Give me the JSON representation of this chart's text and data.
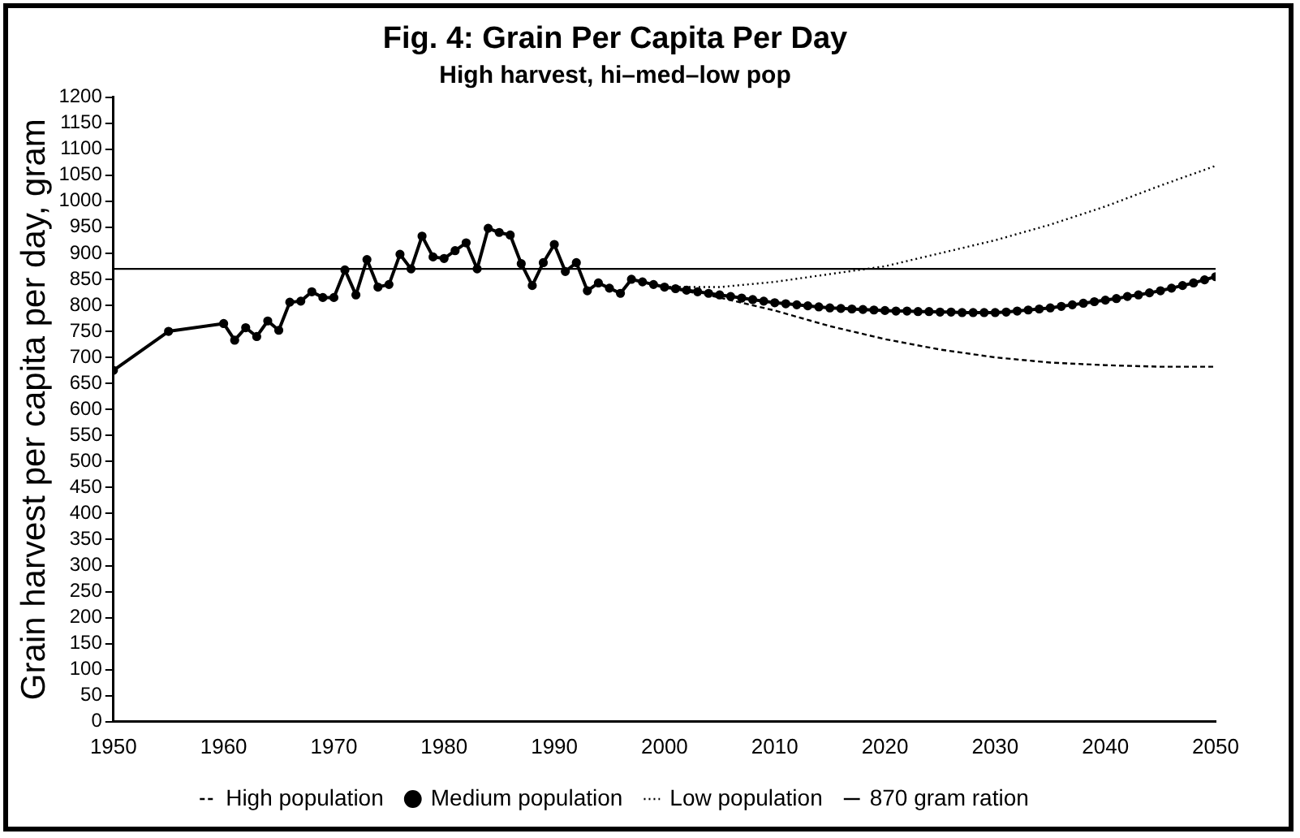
{
  "chart_data": {
    "type": "line",
    "title": "Fig. 4: Grain Per Capita Per Day",
    "subtitle": "High harvest, hi–med–low pop",
    "ylabel": "Grain harvest per capita per day, gram",
    "xlim": [
      1950,
      2050
    ],
    "xticks": [
      1950,
      1960,
      1970,
      1980,
      1990,
      2000,
      2010,
      2020,
      2030,
      2040,
      2050
    ],
    "ylim": [
      0,
      1200
    ],
    "yticks": [
      0,
      50,
      100,
      150,
      200,
      250,
      300,
      350,
      400,
      450,
      500,
      550,
      600,
      650,
      700,
      750,
      800,
      850,
      900,
      950,
      1000,
      1050,
      1100,
      1150,
      1200
    ],
    "grid": false,
    "legend": "bottom",
    "series": [
      {
        "name": "High population",
        "color": "#000000",
        "line_style": "dashed",
        "marker": "none",
        "x": [
          2000,
          2005,
          2010,
          2015,
          2020,
          2025,
          2030,
          2035,
          2040,
          2045,
          2050
        ],
        "values": [
          835,
          815,
          790,
          760,
          735,
          715,
          700,
          690,
          685,
          682,
          682
        ]
      },
      {
        "name": "Medium population",
        "color": "#000000",
        "line_style": "solid",
        "marker": "circle",
        "x": [
          1950,
          1955,
          1960,
          1961,
          1962,
          1963,
          1964,
          1965,
          1966,
          1967,
          1968,
          1969,
          1970,
          1971,
          1972,
          1973,
          1974,
          1975,
          1976,
          1977,
          1978,
          1979,
          1980,
          1981,
          1982,
          1983,
          1984,
          1985,
          1986,
          1987,
          1988,
          1989,
          1990,
          1991,
          1992,
          1993,
          1994,
          1995,
          1996,
          1997,
          1998,
          1999,
          2000,
          2001,
          2002,
          2003,
          2004,
          2005,
          2006,
          2007,
          2008,
          2009,
          2010,
          2011,
          2012,
          2013,
          2014,
          2015,
          2016,
          2017,
          2018,
          2019,
          2020,
          2021,
          2022,
          2023,
          2024,
          2025,
          2026,
          2027,
          2028,
          2029,
          2030,
          2031,
          2032,
          2033,
          2034,
          2035,
          2036,
          2037,
          2038,
          2039,
          2040,
          2041,
          2042,
          2043,
          2044,
          2045,
          2046,
          2047,
          2048,
          2049,
          2050
        ],
        "values": [
          675,
          750,
          765,
          733,
          757,
          740,
          770,
          752,
          806,
          808,
          826,
          815,
          815,
          868,
          820,
          888,
          835,
          840,
          898,
          870,
          933,
          893,
          890,
          905,
          920,
          870,
          948,
          940,
          935,
          880,
          838,
          882,
          917,
          865,
          882,
          828,
          843,
          833,
          823,
          850,
          845,
          840,
          835,
          832,
          829,
          826,
          823,
          820,
          817,
          814,
          811,
          808,
          805,
          803,
          801,
          799,
          797,
          795,
          794,
          793,
          792,
          791,
          790,
          789,
          789,
          788,
          788,
          787,
          787,
          786,
          786,
          786,
          786,
          787,
          789,
          791,
          793,
          795,
          798,
          801,
          804,
          807,
          810,
          813,
          817,
          820,
          824,
          828,
          833,
          838,
          843,
          849,
          855
        ]
      },
      {
        "name": "Low population",
        "color": "#000000",
        "line_style": "dotted",
        "marker": "none",
        "x": [
          2000,
          2005,
          2010,
          2015,
          2020,
          2025,
          2030,
          2035,
          2040,
          2045,
          2050
        ],
        "values": [
          835,
          835,
          845,
          860,
          875,
          900,
          925,
          955,
          990,
          1030,
          1068
        ]
      }
    ],
    "ref_lines": [
      {
        "axis": "y",
        "value": 870,
        "label": "870 gram ration",
        "color": "#000000",
        "line_style": "solid"
      }
    ]
  }
}
